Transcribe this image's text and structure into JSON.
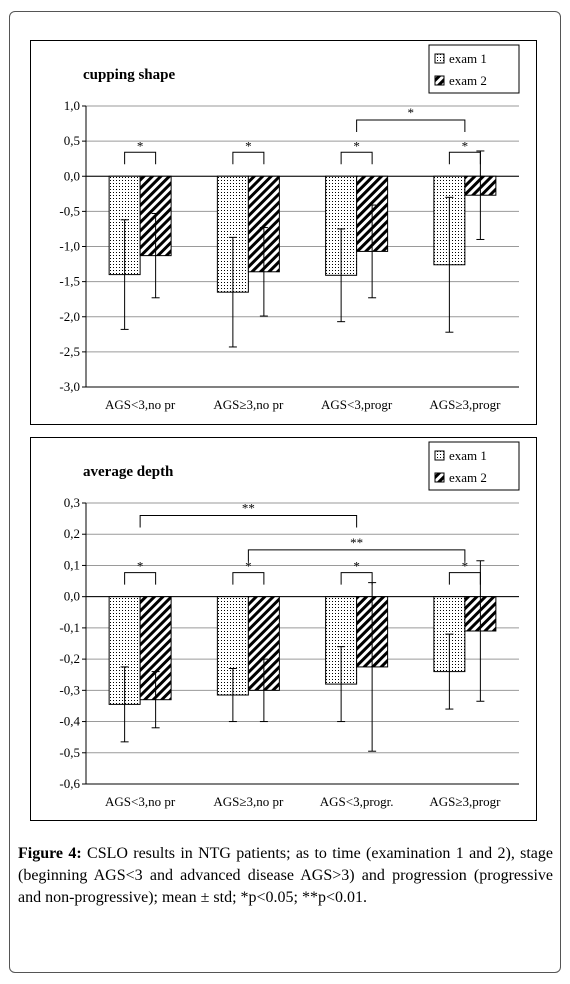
{
  "caption": {
    "label": "Figure 4:",
    "text": "CSLO results in NTG patients; as to time (examination 1 and 2), stage (beginning AGS<3 and advanced disease AGS>3) and progression (progressive and non-progressive); mean ± std; *p<0.05; **p<0.01."
  },
  "chart_data": [
    {
      "type": "bar",
      "title": "cupping shape",
      "categories": [
        "AGS<3,no pr",
        "AGS≥3,no pr",
        "AGS<3,progr",
        "AGS≥3,progr"
      ],
      "series": [
        {
          "name": "exam 1",
          "values": [
            -1.4,
            -1.65,
            -1.41,
            -1.26
          ],
          "error": [
            0.78,
            0.78,
            0.66,
            0.96
          ],
          "pattern": "dots"
        },
        {
          "name": "exam 2",
          "values": [
            -1.13,
            -1.36,
            -1.07,
            -0.27
          ],
          "error": [
            0.6,
            0.63,
            0.66,
            0.63
          ],
          "pattern": "hatch"
        }
      ],
      "ylim": [
        -3.0,
        1.0
      ],
      "yticks": [
        -3.0,
        -2.5,
        -2.0,
        -1.5,
        -1.0,
        -0.5,
        0.0,
        0.5,
        1.0
      ],
      "ytick_labels": [
        "-3,0",
        "-2,5",
        "-2,0",
        "-1,5",
        "-1,0",
        "-0,5",
        "0,0",
        "0,5",
        "1,0"
      ],
      "grid": true,
      "legend": "top-right",
      "annotations": [
        {
          "type": "within",
          "category": 0,
          "label": "*"
        },
        {
          "type": "within",
          "category": 1,
          "label": "*"
        },
        {
          "type": "within",
          "category": 2,
          "label": "*"
        },
        {
          "type": "within",
          "category": 3,
          "label": "*"
        },
        {
          "type": "between",
          "from": 2,
          "to": 3,
          "level": 0.8,
          "label": "*"
        }
      ]
    },
    {
      "type": "bar",
      "title": "average depth",
      "categories": [
        "AGS<3,no pr",
        "AGS≥3,no pr",
        "AGS<3,progr.",
        "AGS≥3,progr"
      ],
      "series": [
        {
          "name": "exam 1",
          "values": [
            -0.345,
            -0.315,
            -0.28,
            -0.24
          ],
          "error": [
            0.12,
            0.085,
            0.12,
            0.12
          ],
          "pattern": "dots"
        },
        {
          "name": "exam 2",
          "values": [
            -0.33,
            -0.3,
            -0.225,
            -0.11
          ],
          "error": [
            0.09,
            0.1,
            0.27,
            0.225
          ],
          "pattern": "hatch"
        }
      ],
      "ylim": [
        -0.6,
        0.3
      ],
      "yticks": [
        -0.6,
        -0.5,
        -0.4,
        -0.3,
        -0.2,
        -0.1,
        0.0,
        0.1,
        0.2,
        0.3
      ],
      "ytick_labels": [
        "-0,6",
        "-0,5",
        "-0,4",
        "-0,3",
        "-0,2",
        "-0,1",
        "0,0",
        "0,1",
        "0,2",
        "0,3"
      ],
      "grid": true,
      "legend": "top-right",
      "annotations": [
        {
          "type": "within",
          "category": 0,
          "label": "*"
        },
        {
          "type": "within",
          "category": 1,
          "label": "*"
        },
        {
          "type": "within",
          "category": 2,
          "label": "*"
        },
        {
          "type": "within",
          "category": 3,
          "label": "*"
        },
        {
          "type": "between",
          "from": 0,
          "to": 2,
          "level": 0.26,
          "label": "**"
        },
        {
          "type": "between",
          "from": 1,
          "to": 3,
          "level": 0.15,
          "label": "**"
        }
      ]
    }
  ]
}
